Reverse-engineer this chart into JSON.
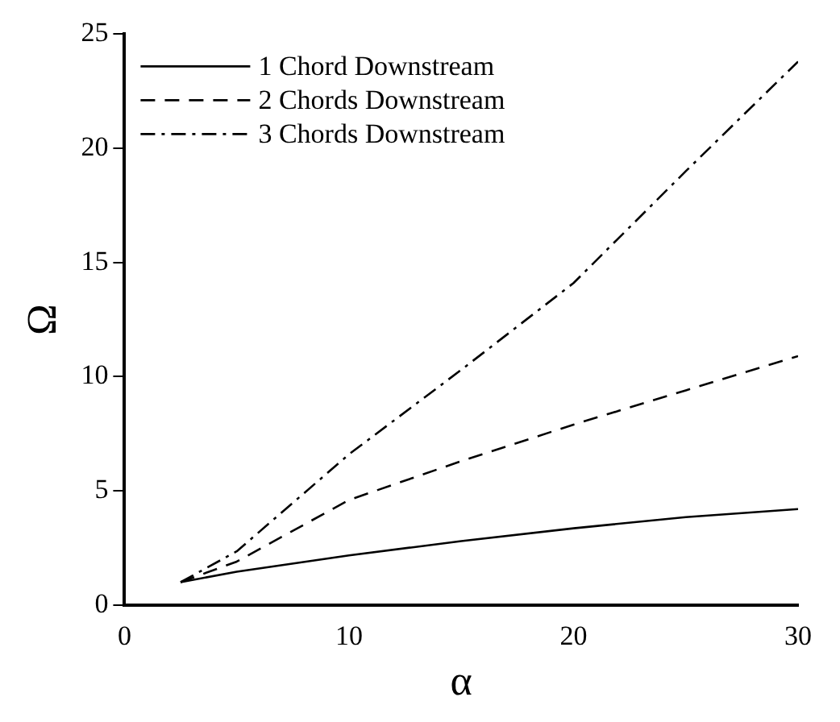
{
  "chart_data": {
    "type": "line",
    "xlabel": "α",
    "ylabel": "Ω",
    "x": [
      2.5,
      5,
      10,
      15,
      20,
      25,
      30
    ],
    "series": [
      {
        "name": "1 Chord Downstream",
        "color": "#000000",
        "line_style": "solid",
        "values": [
          1.0,
          1.46,
          2.17,
          2.8,
          3.36,
          3.85,
          4.2
        ]
      },
      {
        "name": "2 Chords Downstream",
        "color": "#000000",
        "line_style": "dashed",
        "values": [
          1.0,
          1.9,
          4.6,
          6.3,
          7.9,
          9.4,
          10.9
        ]
      },
      {
        "name": "3 Chords Downstream",
        "color": "#000000",
        "line_style": "dashdot",
        "values": [
          1.0,
          2.35,
          6.6,
          10.3,
          14.1,
          19.0,
          23.8
        ]
      }
    ],
    "xlim": [
      0,
      30
    ],
    "xticks": [
      0,
      10,
      20,
      30
    ],
    "ylim": [
      0,
      25
    ],
    "yticks": [
      0,
      5,
      10,
      15,
      20,
      25
    ],
    "grid": false,
    "legend": "top left",
    "marker": "none"
  }
}
